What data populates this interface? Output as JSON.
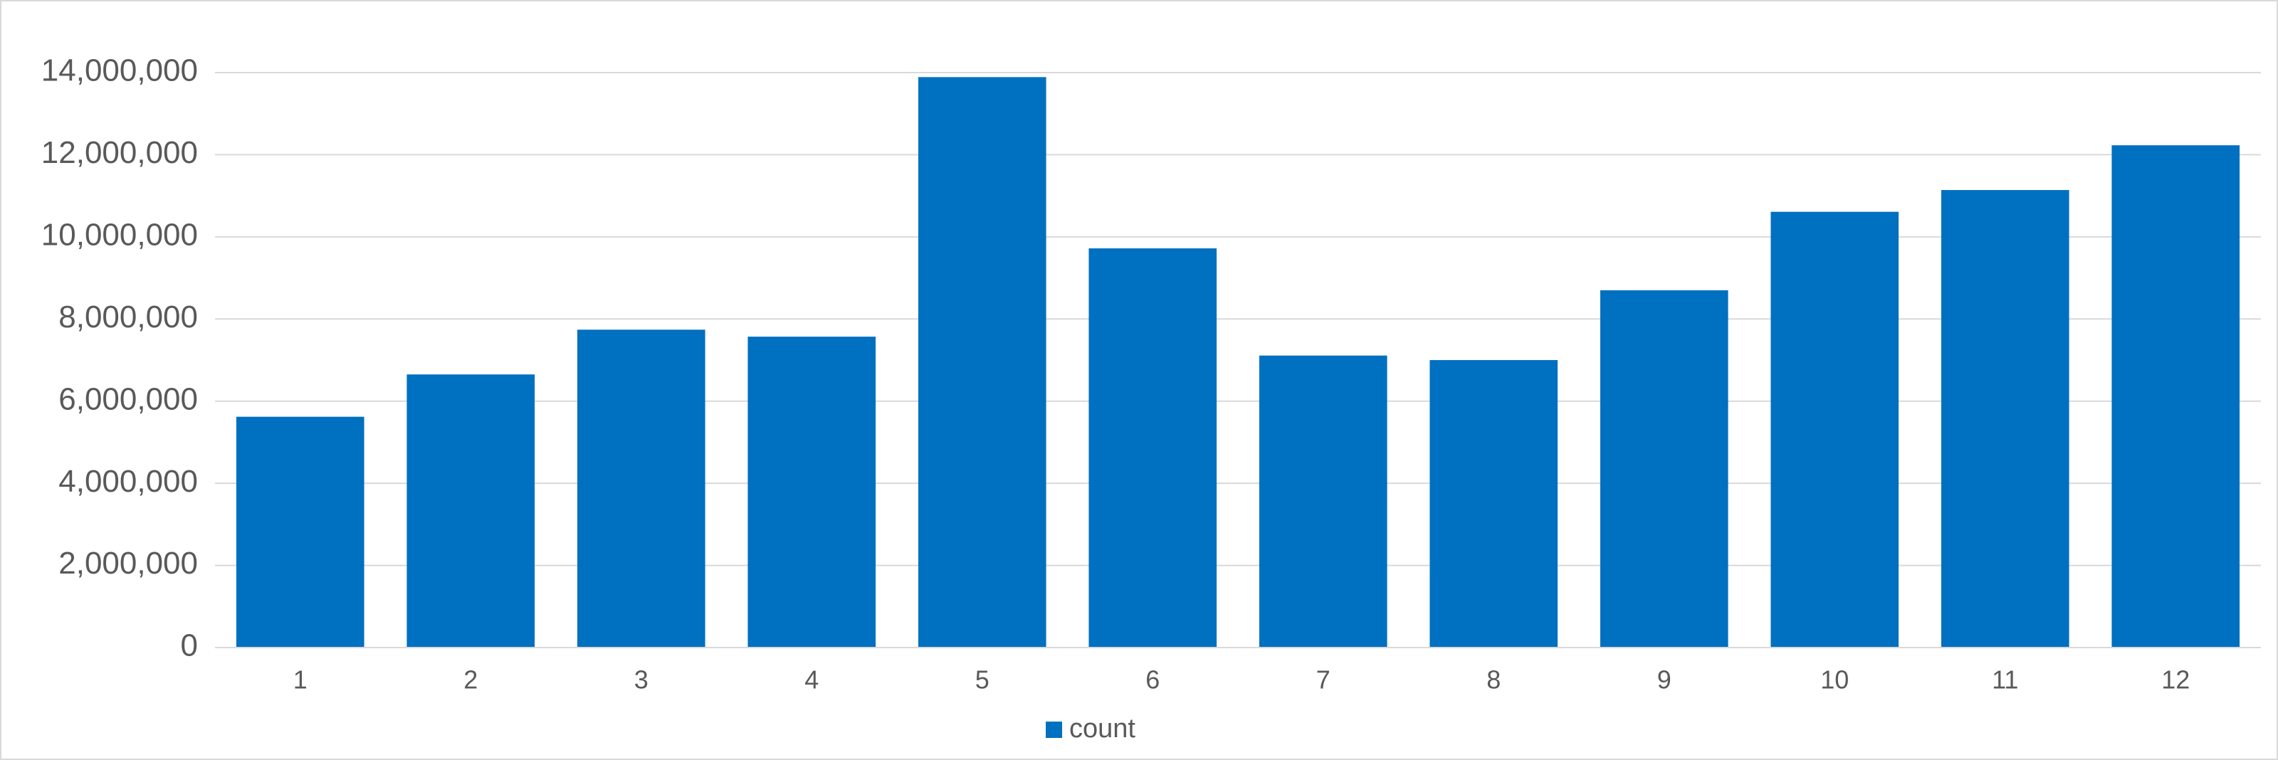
{
  "chart_data": {
    "type": "bar",
    "categories": [
      "1",
      "2",
      "3",
      "4",
      "5",
      "6",
      "7",
      "8",
      "9",
      "10",
      "11",
      "12"
    ],
    "series": [
      {
        "name": "count",
        "color": "#0070c0",
        "values": [
          5620000,
          6650000,
          7740000,
          7570000,
          13890000,
          9720000,
          7110000,
          7000000,
          8700000,
          10610000,
          11140000,
          12230000
        ]
      }
    ],
    "ylim": [
      0,
      14000000
    ],
    "yticks": [
      0,
      {
        "value": 2000000,
        "label": "2,000,000"
      },
      {
        "value": 4000000,
        "label": "4,000,000"
      },
      {
        "value": 6000000,
        "label": "6,000,000"
      },
      {
        "value": 8000000,
        "label": "8,000,000"
      },
      {
        "value": 10000000,
        "label": "10,000,000"
      },
      {
        "value": 12000000,
        "label": "12,000,000"
      },
      {
        "value": 14000000,
        "label": "14,000,000"
      }
    ],
    "grid": true,
    "legend": "bottom"
  }
}
